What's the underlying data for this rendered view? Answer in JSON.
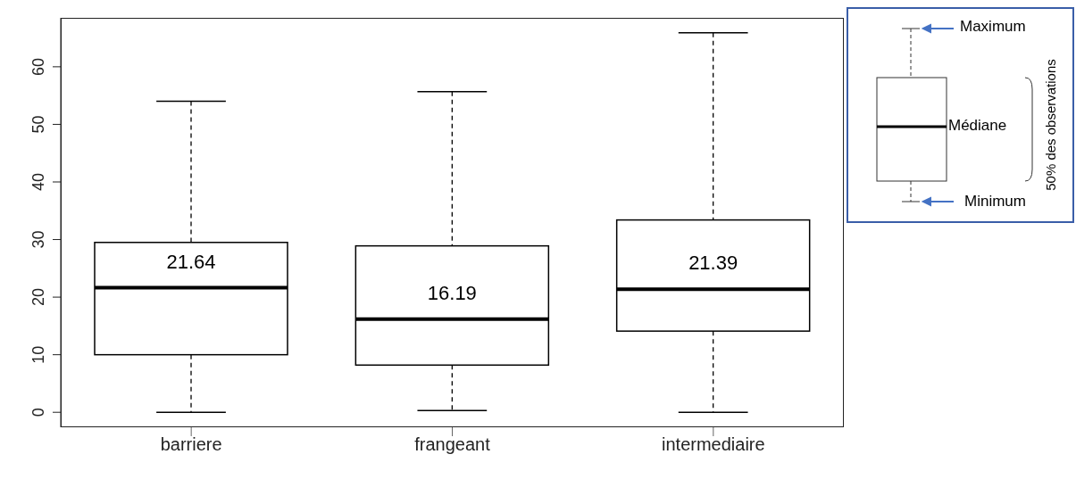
{
  "chart_data": {
    "type": "box",
    "categories": [
      "barriere",
      "frangeant",
      "intermediaire"
    ],
    "color": "#000000",
    "boxes": [
      {
        "low": 0,
        "q1": 10,
        "median": 21.64,
        "q3": 29.5,
        "high": 54
      },
      {
        "low": 0.3,
        "q1": 8.2,
        "median": 16.19,
        "q3": 28.9,
        "high": 55.7
      },
      {
        "low": 0,
        "q1": 14.1,
        "median": 21.39,
        "q3": 33.4,
        "high": 65.9
      }
    ],
    "ylim": [
      -2.6,
      68.5
    ],
    "yticks": [
      0,
      10,
      20,
      30,
      40,
      50,
      60
    ],
    "annotations": [
      "Maximum",
      "Médiane",
      "Minimum",
      "50% des observations",
      {
        "text": "21.64",
        "x": "barriere",
        "y": 21.64
      },
      {
        "text": "16.19",
        "x": "frangeant",
        "y": 16.19
      },
      {
        "text": "21.39",
        "x": "intermediaire",
        "y": 21.39
      }
    ]
  }
}
